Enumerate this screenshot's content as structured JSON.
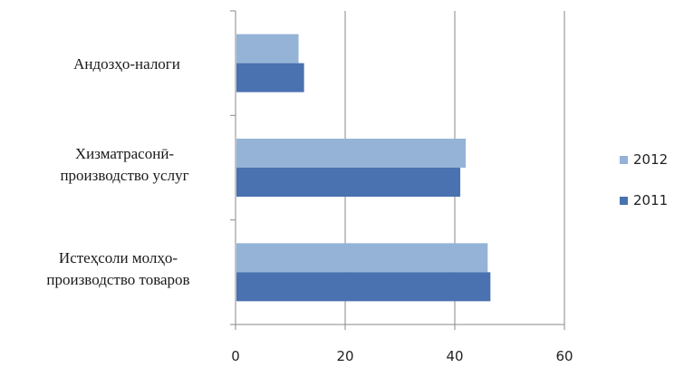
{
  "chart_data": {
    "type": "bar",
    "orientation": "horizontal",
    "categories": [
      [
        "Андозҳо-налоги"
      ],
      [
        "Хизматрасонӣ-",
        "производство услуг"
      ],
      [
        "Истеҳсоли молҳо-",
        "производство товаров"
      ]
    ],
    "series": [
      {
        "name": "2012",
        "color": "#95b3d7",
        "values": [
          11.5,
          42,
          46
        ]
      },
      {
        "name": "2011",
        "color": "#4a72b0",
        "values": [
          12.5,
          41,
          46.5
        ]
      }
    ],
    "xlim": [
      0,
      60
    ],
    "xticks": [
      "0",
      "20",
      "40",
      "60"
    ],
    "grid": true,
    "legend_position": "right",
    "legend_order": [
      "2012",
      "2011"
    ]
  }
}
